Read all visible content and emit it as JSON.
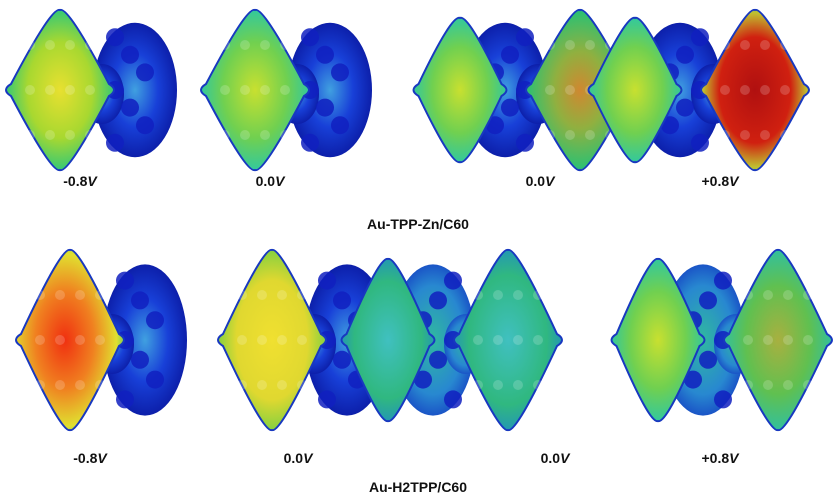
{
  "rows": [
    {
      "caption": "Au-TPP-Zn/C60",
      "panels": [
        {
          "value": "-0.8",
          "unit": "V"
        },
        {
          "value": "0.0",
          "unit": "V"
        },
        {
          "value": "0.0",
          "unit": "V"
        },
        {
          "value": "+0.8",
          "unit": "V"
        }
      ]
    },
    {
      "caption": "Au-H2TPP/C60",
      "panels": [
        {
          "value": "-0.8",
          "unit": "V"
        },
        {
          "value": "0.0",
          "unit": "V"
        },
        {
          "value": "0.0",
          "unit": "V"
        },
        {
          "value": "+0.8",
          "unit": "V"
        }
      ]
    }
  ]
}
